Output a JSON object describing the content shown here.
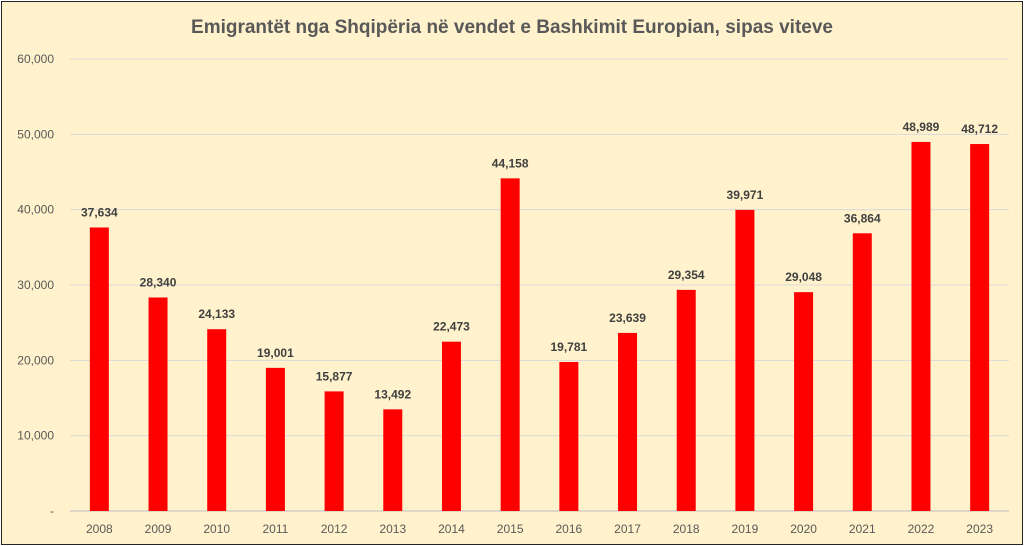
{
  "chart_data": {
    "type": "bar",
    "title": "Emigrantët nga Shqipëria në vendet e Bashkimit Europian, sipas viteve",
    "xlabel": "",
    "ylabel": "",
    "ylim": [
      0,
      60000
    ],
    "y_ticks": [
      "-",
      "10,000",
      "20,000",
      "30,000",
      "40,000",
      "50,000",
      "60,000"
    ],
    "y_tick_values": [
      0,
      10000,
      20000,
      30000,
      40000,
      50000,
      60000
    ],
    "grid": true,
    "legend": "none",
    "bar_color": "#ff0000",
    "categories": [
      "2008",
      "2009",
      "2010",
      "2011",
      "2012",
      "2013",
      "2014",
      "2015",
      "2016",
      "2017",
      "2018",
      "2019",
      "2020",
      "2021",
      "2022",
      "2023"
    ],
    "values": [
      37634,
      28340,
      24133,
      19001,
      15877,
      13492,
      22473,
      44158,
      19781,
      23639,
      29354,
      39971,
      29048,
      36864,
      48989,
      48712
    ],
    "data_labels": [
      "37,634",
      "28,340",
      "24,133",
      "19,001",
      "15,877",
      "13,492",
      "22,473",
      "44,158",
      "19,781",
      "23,639",
      "29,354",
      "39,971",
      "29,048",
      "36,864",
      "48,989",
      "48,712"
    ]
  }
}
